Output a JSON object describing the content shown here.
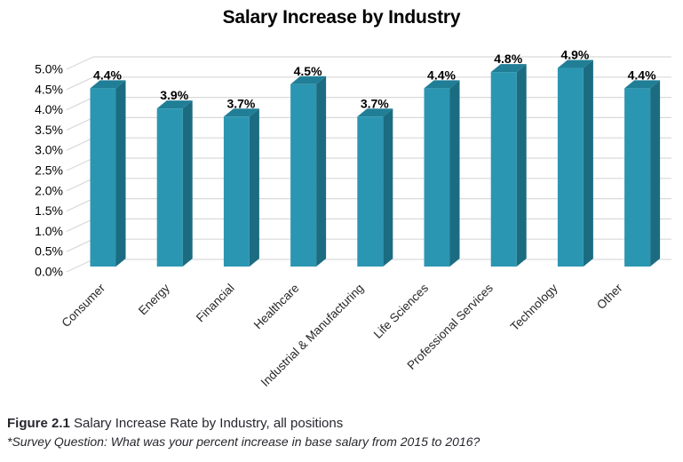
{
  "title": "Salary Increase by Industry",
  "chart_data": {
    "type": "bar",
    "style": "3d-column",
    "title": "Salary Increase by Industry",
    "categories": [
      "Consumer",
      "Energy",
      "Financial",
      "Healthcare",
      "Industrial & Manufacturing",
      "Life Sciences",
      "Professional Services",
      "Technology",
      "Other"
    ],
    "values": [
      4.4,
      3.9,
      3.7,
      4.5,
      3.7,
      4.4,
      4.8,
      4.9,
      4.4
    ],
    "data_labels": [
      "4.4%",
      "3.9%",
      "3.7%",
      "4.5%",
      "3.7%",
      "4.4%",
      "4.8%",
      "4.9%",
      "4.4%"
    ],
    "y_ticks": [
      "0.0%",
      "0.5%",
      "1.0%",
      "1.5%",
      "2.0%",
      "2.5%",
      "3.0%",
      "3.5%",
      "4.0%",
      "4.5%",
      "5.0%"
    ],
    "ylim": [
      0,
      5
    ],
    "xlabel": "",
    "ylabel": "",
    "grid": true,
    "legend": "none",
    "colors": {
      "bar_front": "#2B96B1",
      "bar_side": "#1C6C81",
      "bar_top": "#207E96",
      "gridline": "#D9D9D9",
      "tick_text": "#262626",
      "value_text": "#000000"
    }
  },
  "caption": {
    "figure_label": "Figure 2.1",
    "figure_text": " Salary Increase Rate by Industry, all positions",
    "survey_note": "*Survey Question: What was your percent increase in base salary from 2015 to 2016?"
  }
}
